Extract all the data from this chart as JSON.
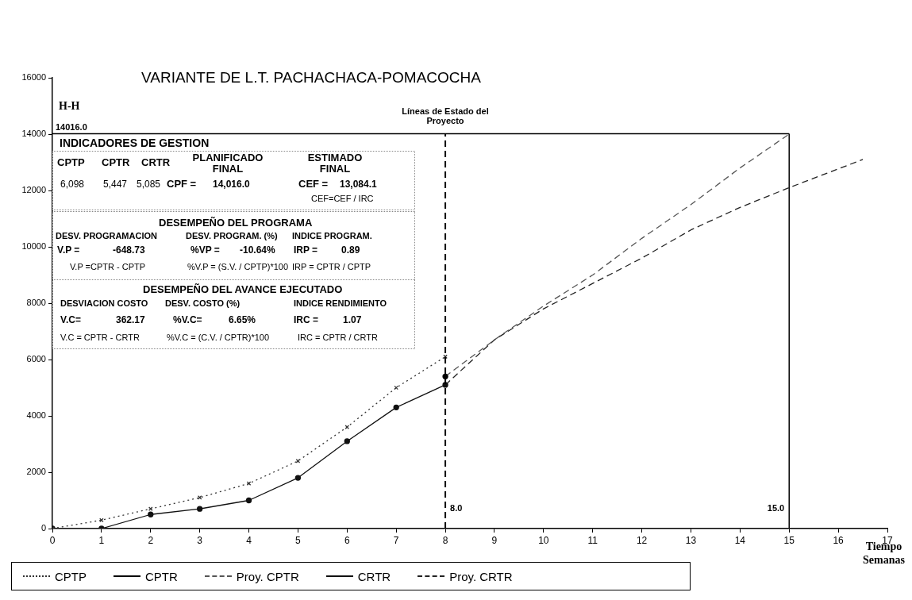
{
  "chart_data": {
    "type": "line",
    "title": "VARIANTE DE L.T. PACHACHACA-POMACOCHA",
    "xlabel": "Tiempo Semanas",
    "ylabel": "H-H",
    "xlim": [
      0,
      17
    ],
    "xticks": [
      0,
      1,
      2,
      3,
      4,
      5,
      6,
      7,
      8,
      9,
      10,
      11,
      12,
      13,
      14,
      15,
      16,
      17
    ],
    "ylim": [
      0,
      16000
    ],
    "yticks": [
      0,
      2000,
      4000,
      6000,
      8000,
      10000,
      12000,
      14000,
      16000
    ],
    "grid": false,
    "legend": "bottom",
    "series": [
      {
        "name": "CPTP",
        "color": "#333333",
        "line_style": "dotted",
        "marker": "cross",
        "x": [
          0,
          1,
          2,
          3,
          4,
          5,
          6,
          7,
          8
        ],
        "values": [
          0,
          300,
          700,
          1100,
          1600,
          2400,
          3600,
          5000,
          6100
        ]
      },
      {
        "name": "CPTR",
        "color": "#000000",
        "line_style": "solid",
        "marker": "circle",
        "x": [
          8
        ],
        "values": [
          5400
        ]
      },
      {
        "name": "Proy. CPTR",
        "color": "#555555",
        "line_style": "dashed",
        "marker": "none",
        "x": [
          8,
          9,
          10,
          11,
          12,
          13,
          14,
          15
        ],
        "values": [
          5400,
          6700,
          7900,
          9000,
          10300,
          11500,
          12800,
          14000
        ]
      },
      {
        "name": "CRTR",
        "color": "#111111",
        "line_style": "solid",
        "marker": "circle",
        "x": [
          0,
          1,
          2,
          3,
          4,
          5,
          6,
          7,
          8
        ],
        "values": [
          0,
          0,
          500,
          700,
          1000,
          1800,
          3100,
          4300,
          5100
        ]
      },
      {
        "name": "Proy. CRTR",
        "color": "#222222",
        "line_style": "dashed",
        "marker": "none",
        "x": [
          8,
          9,
          10,
          11,
          12,
          13,
          14,
          15,
          16.5
        ],
        "values": [
          5100,
          6700,
          7800,
          8700,
          9600,
          10600,
          11400,
          12100,
          13100
        ]
      }
    ],
    "ref_lines": [
      {
        "axis": "x",
        "value": 8,
        "label": "8.0",
        "line_style": "dashed",
        "color": "#000000"
      },
      {
        "axis": "x",
        "value": 15,
        "label": "15.0",
        "line_style": "solid",
        "color": "#000000"
      },
      {
        "axis": "y",
        "value": 14016,
        "label": "14016.0",
        "line_style": "solid",
        "color": "#000000"
      }
    ],
    "annotations": [
      "Líneas de Estado del Proyecto",
      "INDICADORES DE GESTION",
      "CPTP",
      "CPTR",
      "CRTR",
      "PLANIFICADO FINAL",
      "ESTIMADO FINAL",
      "6,098",
      "5,447",
      "5,085",
      "CPF =",
      "14,016.0",
      "CEF =",
      "13,084.1",
      "CEF=CEF / IRC",
      "DESEMPEÑO DEL PROGRAMA",
      "DESV. PROGRAMACION",
      "DESV. PROGRAM. (%)",
      "INDICE PROGRAM.",
      "V.P =",
      "-648.73",
      "%VP =",
      "-10.64%",
      "IRP =",
      "0.89",
      "V.P =CPTR - CPTP",
      "%V.P = (S.V. / CPTP)*100",
      "IRP = CPTR / CPTP",
      "DESEMPEÑO DEL AVANCE EJECUTADO",
      "DESVIACION COSTO",
      "DESV. COSTO (%)",
      "INDICE RENDIMIENTO",
      "V.C=",
      "362.17",
      "%V.C=",
      "6.65%",
      "IRC =",
      "1.07",
      "V.C = CPTR - CRTR",
      "%V.C = (C.V. / CPTR)*100",
      "IRC = CPTR / CRTR"
    ]
  }
}
